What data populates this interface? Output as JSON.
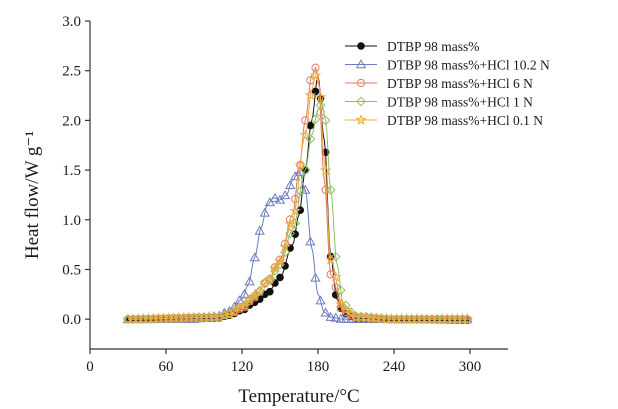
{
  "chart_data": {
    "type": "line",
    "xlabel": "Temperature/°C",
    "ylabel": "Heat flow/W g⁻¹",
    "xlim": [
      0,
      330
    ],
    "ylim": [
      -0.3,
      3.0
    ],
    "xticks": [
      0,
      60,
      120,
      180,
      240,
      300
    ],
    "yticks": [
      0.0,
      0.5,
      1.0,
      1.5,
      2.0,
      2.5,
      3.0
    ],
    "xtick_labels": [
      "0",
      "60",
      "120",
      "180",
      "240",
      "300"
    ],
    "ytick_labels": [
      "0.0",
      "0.5",
      "1.0",
      "1.5",
      "2.0",
      "2.5",
      "3.0"
    ],
    "grid": false,
    "legend_position": "top-right",
    "series": [
      {
        "name": "DTBP  98 mass%",
        "marker": "filled-circle",
        "color": "#111111",
        "x": [
          30,
          100,
          110,
          120,
          130,
          140,
          150,
          160,
          165,
          170,
          175,
          180,
          185,
          190,
          195,
          200,
          210,
          220,
          240,
          300
        ],
        "y": [
          0.0,
          0.01,
          0.04,
          0.09,
          0.17,
          0.26,
          0.42,
          0.75,
          1.05,
          1.5,
          2.0,
          2.45,
          1.8,
          0.63,
          0.2,
          0.06,
          0.01,
          0.0,
          0.0,
          -0.01
        ]
      },
      {
        "name": "DTBP  98 mass%+HCl 10.2 N",
        "marker": "open-triangle",
        "color": "#6a7bc0",
        "x": [
          30,
          80,
          100,
          110,
          120,
          125,
          130,
          135,
          140,
          145,
          150,
          155,
          160,
          165,
          170,
          175,
          180,
          185,
          190,
          200,
          220,
          250,
          300
        ],
        "y": [
          0.0,
          0.0,
          0.03,
          0.08,
          0.2,
          0.35,
          0.62,
          0.92,
          1.15,
          1.22,
          1.2,
          1.25,
          1.4,
          1.5,
          1.3,
          0.72,
          0.25,
          0.07,
          0.02,
          0.0,
          0.0,
          0.0,
          0.0
        ]
      },
      {
        "name": "DTBP  98 mass%+HCl 6 N",
        "marker": "open-circle",
        "color": "#e07a5f",
        "x": [
          30,
          100,
          110,
          120,
          130,
          140,
          150,
          160,
          165,
          170,
          175,
          178,
          180,
          185,
          190,
          200,
          210,
          240,
          300
        ],
        "y": [
          0.0,
          0.02,
          0.05,
          0.11,
          0.22,
          0.38,
          0.6,
          1.05,
          1.5,
          2.0,
          2.45,
          2.53,
          2.45,
          1.4,
          0.45,
          0.08,
          0.02,
          0.0,
          0.0
        ]
      },
      {
        "name": "DTBP  98 mass%+HCl 1 N",
        "marker": "open-diamond",
        "color": "#8fbf6a",
        "x": [
          30,
          100,
          110,
          120,
          130,
          140,
          150,
          160,
          170,
          175,
          180,
          183,
          186,
          190,
          195,
          200,
          210,
          240,
          300
        ],
        "y": [
          0.0,
          0.02,
          0.06,
          0.13,
          0.24,
          0.37,
          0.55,
          0.9,
          1.5,
          1.85,
          2.1,
          2.17,
          2.0,
          1.3,
          0.55,
          0.15,
          0.03,
          0.0,
          0.0
        ]
      },
      {
        "name": "DTBP  98 mass%+HCl 0.1 N",
        "marker": "open-star",
        "color": "#f0a840",
        "x": [
          30,
          100,
          110,
          120,
          130,
          140,
          150,
          160,
          170,
          175,
          178,
          181,
          185,
          190,
          200,
          210,
          240,
          300
        ],
        "y": [
          0.0,
          0.02,
          0.05,
          0.12,
          0.23,
          0.38,
          0.58,
          1.0,
          1.85,
          2.3,
          2.45,
          2.35,
          1.6,
          0.6,
          0.1,
          0.02,
          0.0,
          0.0
        ]
      }
    ]
  }
}
